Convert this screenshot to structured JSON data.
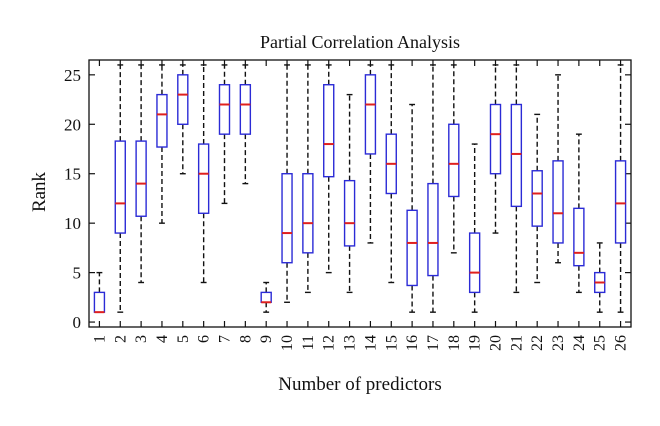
{
  "chart_data": {
    "type": "box",
    "title": "Partial Correlation Analysis",
    "xlabel": "Number of predictors",
    "ylabel": "Rank",
    "categories": [
      "1",
      "2",
      "3",
      "4",
      "5",
      "6",
      "7",
      "8",
      "9",
      "10",
      "11",
      "12",
      "13",
      "14",
      "15",
      "16",
      "17",
      "18",
      "19",
      "20",
      "21",
      "22",
      "23",
      "24",
      "25",
      "26"
    ],
    "ylim": [
      -0.5,
      26.5
    ],
    "yticks": [
      0,
      5,
      10,
      15,
      20,
      25
    ],
    "grid": false,
    "series": [
      {
        "boxes": [
          {
            "whisker_low": 1,
            "q1": 1,
            "median": 1,
            "q3": 3,
            "whisker_high": 5
          },
          {
            "whisker_low": 1,
            "q1": 9,
            "median": 12,
            "q3": 18.3,
            "whisker_high": 26
          },
          {
            "whisker_low": 4,
            "q1": 10.7,
            "median": 14,
            "q3": 18.3,
            "whisker_high": 26
          },
          {
            "whisker_low": 10,
            "q1": 17.7,
            "median": 21,
            "q3": 23,
            "whisker_high": 26
          },
          {
            "whisker_low": 15,
            "q1": 20,
            "median": 23,
            "q3": 25,
            "whisker_high": 26
          },
          {
            "whisker_low": 4,
            "q1": 11,
            "median": 15,
            "q3": 18,
            "whisker_high": 26
          },
          {
            "whisker_low": 12,
            "q1": 19,
            "median": 22,
            "q3": 24,
            "whisker_high": 26
          },
          {
            "whisker_low": 14,
            "q1": 19,
            "median": 22,
            "q3": 24,
            "whisker_high": 26
          },
          {
            "whisker_low": 1,
            "q1": 2,
            "median": 2,
            "q3": 3,
            "whisker_high": 4
          },
          {
            "whisker_low": 2,
            "q1": 6,
            "median": 9,
            "q3": 15,
            "whisker_high": 26
          },
          {
            "whisker_low": 3,
            "q1": 7,
            "median": 10,
            "q3": 15,
            "whisker_high": 26
          },
          {
            "whisker_low": 5,
            "q1": 14.7,
            "median": 18,
            "q3": 24,
            "whisker_high": 26
          },
          {
            "whisker_low": 3,
            "q1": 7.7,
            "median": 10,
            "q3": 14.3,
            "whisker_high": 23
          },
          {
            "whisker_low": 8,
            "q1": 17,
            "median": 22,
            "q3": 25,
            "whisker_high": 26
          },
          {
            "whisker_low": 4,
            "q1": 13,
            "median": 16,
            "q3": 19,
            "whisker_high": 26
          },
          {
            "whisker_low": 1,
            "q1": 3.7,
            "median": 8,
            "q3": 11.3,
            "whisker_high": 22
          },
          {
            "whisker_low": 1,
            "q1": 4.7,
            "median": 8,
            "q3": 14,
            "whisker_high": 26
          },
          {
            "whisker_low": 7,
            "q1": 12.7,
            "median": 16,
            "q3": 20,
            "whisker_high": 26
          },
          {
            "whisker_low": 1,
            "q1": 3,
            "median": 5,
            "q3": 9,
            "whisker_high": 18
          },
          {
            "whisker_low": 9,
            "q1": 15,
            "median": 19,
            "q3": 22,
            "whisker_high": 26
          },
          {
            "whisker_low": 3,
            "q1": 11.7,
            "median": 17,
            "q3": 22,
            "whisker_high": 26
          },
          {
            "whisker_low": 4,
            "q1": 9.7,
            "median": 13,
            "q3": 15.3,
            "whisker_high": 21
          },
          {
            "whisker_low": 6,
            "q1": 8,
            "median": 11,
            "q3": 16.3,
            "whisker_high": 25
          },
          {
            "whisker_low": 3,
            "q1": 5.7,
            "median": 7,
            "q3": 11.5,
            "whisker_high": 19
          },
          {
            "whisker_low": 1,
            "q1": 3,
            "median": 4,
            "q3": 5,
            "whisker_high": 8
          },
          {
            "whisker_low": 1,
            "q1": 8,
            "median": 12,
            "q3": 16.3,
            "whisker_high": 26
          }
        ]
      }
    ],
    "colors": {
      "box": "#2b2bd6",
      "median": "#e0201e",
      "whisker": "#111111",
      "axis": "#111111"
    }
  }
}
